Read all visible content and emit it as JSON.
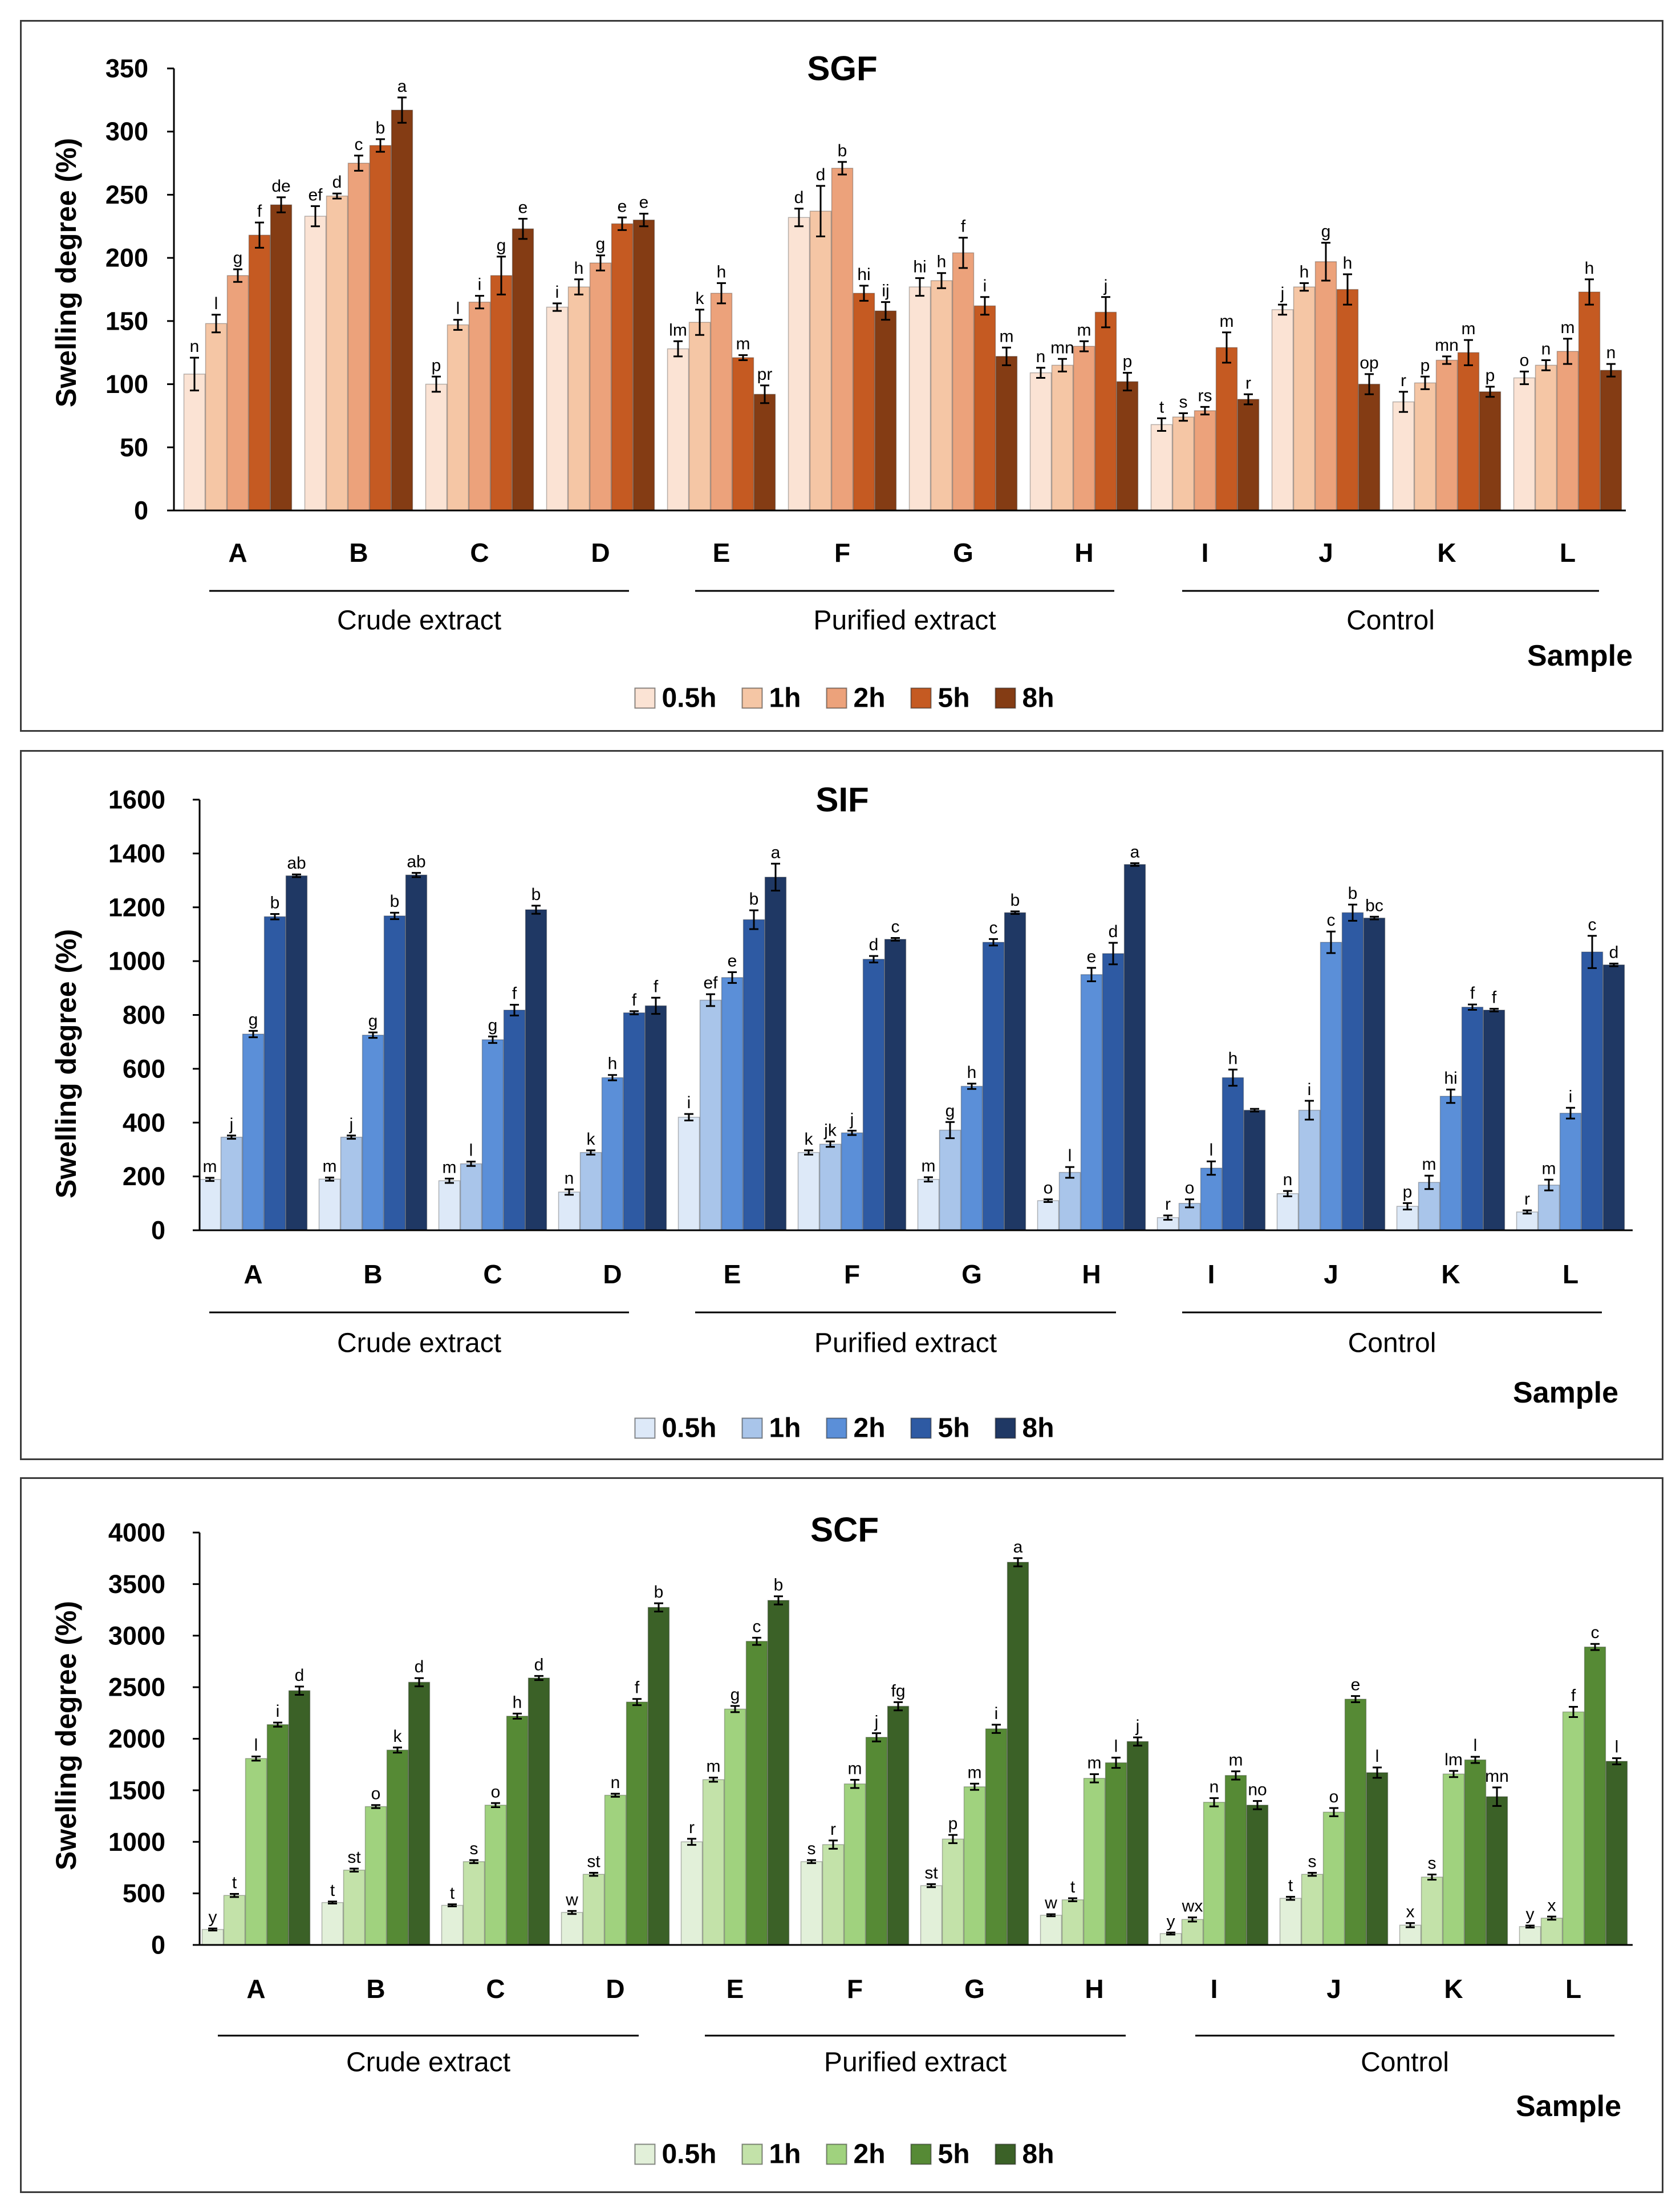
{
  "chart_data": [
    {
      "type": "bar",
      "title": "SGF",
      "xlabel": "Sample",
      "ylabel": "Swelling degree (%)",
      "ylim": [
        0,
        350
      ],
      "yticks": [
        0,
        50,
        100,
        150,
        200,
        250,
        300,
        350
      ],
      "categories": [
        "A",
        "B",
        "C",
        "D",
        "E",
        "F",
        "G",
        "H",
        "I",
        "J",
        "K",
        "L"
      ],
      "groups": [
        {
          "label": "Crude extract",
          "category_index_range": [
            0,
            3
          ]
        },
        {
          "label": "Purified extract",
          "category_index_range": [
            4,
            7
          ]
        },
        {
          "label": "Control",
          "category_index_range": [
            8,
            11
          ]
        }
      ],
      "series": [
        {
          "name": "0.5h",
          "color": "#fbe3d4",
          "values": [
            108,
            233,
            100,
            161,
            128,
            232,
            177,
            109,
            68,
            159,
            86,
            105
          ],
          "errors": [
            13,
            8,
            6,
            3,
            6,
            7,
            7,
            4,
            5,
            4,
            8,
            5
          ],
          "letters": [
            "n",
            "ef",
            "p",
            "i",
            "lm",
            "d",
            "hi",
            "n",
            "t",
            "j",
            "r",
            "o"
          ]
        },
        {
          "name": "1h",
          "color": "#f5c6a5",
          "values": [
            148,
            249,
            147,
            177,
            149,
            237,
            182,
            115,
            74,
            177,
            101,
            115
          ],
          "errors": [
            7,
            2,
            4,
            6,
            10,
            20,
            6,
            5,
            3,
            3,
            5,
            4
          ],
          "letters": [
            "l",
            "d",
            "l",
            "h",
            "k",
            "d",
            "h",
            "mn",
            "s",
            "h",
            "p",
            "n"
          ]
        },
        {
          "name": "2h",
          "color": "#eca27b",
          "values": [
            186,
            275,
            165,
            196,
            172,
            271,
            204,
            130,
            79,
            197,
            119,
            126
          ],
          "errors": [
            5,
            6,
            5,
            6,
            8,
            5,
            12,
            4,
            3,
            15,
            3,
            10
          ],
          "letters": [
            "g",
            "c",
            "i",
            "g",
            "h",
            "b",
            "f",
            "m",
            "rs",
            "g",
            "mn",
            "m"
          ]
        },
        {
          "name": "5h",
          "color": "#c55a22",
          "values": [
            218,
            289,
            186,
            227,
            121,
            172,
            162,
            157,
            129,
            175,
            125,
            173
          ],
          "errors": [
            10,
            5,
            15,
            5,
            2,
            6,
            7,
            12,
            12,
            12,
            10,
            10
          ],
          "letters": [
            "f",
            "b",
            "g",
            "e",
            "m",
            "hi",
            "i",
            "j",
            "m",
            "h",
            "m",
            "h"
          ]
        },
        {
          "name": "8h",
          "color": "#843c14",
          "values": [
            242,
            317,
            223,
            230,
            92,
            158,
            122,
            102,
            88,
            100,
            94,
            111
          ],
          "errors": [
            6,
            10,
            8,
            5,
            7,
            7,
            7,
            7,
            4,
            8,
            4,
            5
          ],
          "letters": [
            "de",
            "a",
            "e",
            "e",
            "pr",
            "ij",
            "m",
            "p",
            "r",
            "op",
            "p",
            "n"
          ]
        }
      ]
    },
    {
      "type": "bar",
      "title": "SIF",
      "xlabel": "Sample",
      "ylabel": "Swelling degree (%)",
      "ylim": [
        0,
        1600
      ],
      "yticks": [
        0,
        200,
        400,
        600,
        800,
        1000,
        1200,
        1400,
        1600
      ],
      "categories": [
        "A",
        "B",
        "C",
        "D",
        "E",
        "F",
        "G",
        "H",
        "I",
        "J",
        "K",
        "L"
      ],
      "groups": [
        {
          "label": "Crude extract",
          "category_index_range": [
            0,
            3
          ]
        },
        {
          "label": "Purified extract",
          "category_index_range": [
            4,
            7
          ]
        },
        {
          "label": "Control",
          "category_index_range": [
            8,
            11
          ]
        }
      ],
      "series": [
        {
          "name": "0.5h",
          "color": "#dde9f8",
          "values": [
            189,
            190,
            184,
            142,
            420,
            289,
            189,
            110,
            47,
            136,
            89,
            68
          ],
          "errors": [
            6,
            6,
            8,
            10,
            12,
            8,
            8,
            5,
            8,
            10,
            12,
            6
          ],
          "letters": [
            "m",
            "m",
            "m",
            "n",
            "i",
            "k",
            "m",
            "o",
            "r",
            "n",
            "p",
            "r"
          ]
        },
        {
          "name": "1h",
          "color": "#a9c5ea",
          "values": [
            346,
            346,
            247,
            289,
            855,
            320,
            372,
            215,
            100,
            446,
            178,
            168
          ],
          "errors": [
            6,
            6,
            8,
            8,
            22,
            10,
            30,
            20,
            15,
            35,
            25,
            20
          ],
          "letters": [
            "j",
            "j",
            "l",
            "k",
            "ef",
            "jk",
            "g",
            "l",
            "o",
            "i",
            "m",
            "m"
          ]
        },
        {
          "name": "2h",
          "color": "#5b8fd8",
          "values": [
            729,
            725,
            708,
            567,
            939,
            362,
            535,
            950,
            231,
            1070,
            498,
            435
          ],
          "errors": [
            12,
            10,
            12,
            10,
            20,
            8,
            10,
            25,
            25,
            40,
            25,
            20
          ],
          "letters": [
            "g",
            "g",
            "g",
            "h",
            "e",
            "j",
            "h",
            "e",
            "l",
            "c",
            "hi",
            "i"
          ]
        },
        {
          "name": "5h",
          "color": "#2e5aa3",
          "values": [
            1165,
            1168,
            818,
            808,
            1154,
            1007,
            1070,
            1028,
            567,
            1180,
            829,
            1034
          ],
          "errors": [
            10,
            12,
            20,
            6,
            35,
            12,
            12,
            40,
            30,
            30,
            10,
            60
          ],
          "letters": [
            "b",
            "b",
            "f",
            "f",
            "b",
            "d",
            "c",
            "d",
            "h",
            "b",
            "f",
            "c"
          ]
        },
        {
          "name": "8h",
          "color": "#1f3864",
          "values": [
            1317,
            1320,
            1191,
            834,
            1312,
            1081,
            1180,
            1359,
            446,
            1160,
            818,
            986
          ],
          "errors": [
            5,
            8,
            15,
            30,
            50,
            5,
            5,
            5,
            5,
            5,
            5,
            5
          ],
          "letters": [
            "ab",
            "ab",
            "b",
            "f",
            "a",
            "c",
            "b",
            "a",
            null,
            "bc",
            "f",
            "d"
          ]
        }
      ]
    },
    {
      "type": "bar",
      "title": "SCF",
      "xlabel": "Sample",
      "ylabel": "Swelling degree (%)",
      "ylim": [
        0,
        4000
      ],
      "yticks": [
        0,
        500,
        1000,
        1500,
        2000,
        2500,
        3000,
        3500,
        4000
      ],
      "categories": [
        "A",
        "B",
        "C",
        "D",
        "E",
        "F",
        "G",
        "H",
        "I",
        "J",
        "K",
        "L"
      ],
      "groups": [
        {
          "label": "Crude extract",
          "category_index_range": [
            0,
            3
          ]
        },
        {
          "label": "Purified extract",
          "category_index_range": [
            4,
            7
          ]
        },
        {
          "label": "Control",
          "category_index_range": [
            8,
            11
          ]
        }
      ],
      "series": [
        {
          "name": "0.5h",
          "color": "#e2f0d9",
          "values": [
            150,
            411,
            384,
            315,
            1000,
            808,
            575,
            288,
            110,
            452,
            192,
            178
          ],
          "errors": [
            10,
            10,
            10,
            15,
            30,
            15,
            15,
            10,
            10,
            15,
            20,
            10
          ],
          "letters": [
            "y",
            "t",
            "t",
            "w",
            "r",
            "s",
            "st",
            "w",
            "y",
            "t",
            "x",
            "y"
          ]
        },
        {
          "name": "1h",
          "color": "#c3e2a9",
          "values": [
            480,
            726,
            808,
            685,
            1603,
            973,
            1027,
            438,
            247,
            685,
            658,
            260
          ],
          "errors": [
            15,
            15,
            15,
            15,
            20,
            40,
            40,
            15,
            20,
            15,
            25,
            15
          ],
          "letters": [
            "t",
            "st",
            "s",
            "st",
            "m",
            "r",
            "p",
            "t",
            "wx",
            "s",
            "s",
            "x"
          ]
        },
        {
          "name": "2h",
          "color": "#a0d27e",
          "values": [
            1808,
            1342,
            1356,
            1452,
            2288,
            1562,
            1534,
            1616,
            1384,
            1288,
            1658,
            2260
          ],
          "errors": [
            20,
            15,
            20,
            15,
            30,
            40,
            30,
            40,
            40,
            40,
            30,
            50
          ],
          "letters": [
            "l",
            "o",
            "o",
            "n",
            "g",
            "m",
            "m",
            "m",
            "n",
            "o",
            "lm",
            "f"
          ]
        },
        {
          "name": "5h",
          "color": "#568a35",
          "values": [
            2137,
            1890,
            2219,
            2356,
            2945,
            2014,
            2096,
            1767,
            1644,
            2384,
            1795,
            2890
          ],
          "errors": [
            20,
            25,
            25,
            30,
            35,
            40,
            40,
            50,
            40,
            30,
            30,
            30
          ],
          "letters": [
            "i",
            "k",
            "h",
            "f",
            "c",
            "j",
            "i",
            "l",
            "m",
            "e",
            "l",
            "c"
          ]
        },
        {
          "name": "8h",
          "color": "#3b6127",
          "values": [
            2466,
            2548,
            2589,
            3274,
            3342,
            2315,
            3712,
            1973,
            1356,
            1671,
            1438,
            1781
          ],
          "errors": [
            40,
            40,
            20,
            40,
            40,
            40,
            40,
            40,
            40,
            50,
            90,
            30
          ],
          "letters": [
            "d",
            "d",
            "d",
            "b",
            "b",
            "fg",
            "a",
            "j",
            "no",
            "l",
            "mn",
            "l"
          ]
        }
      ]
    }
  ]
}
